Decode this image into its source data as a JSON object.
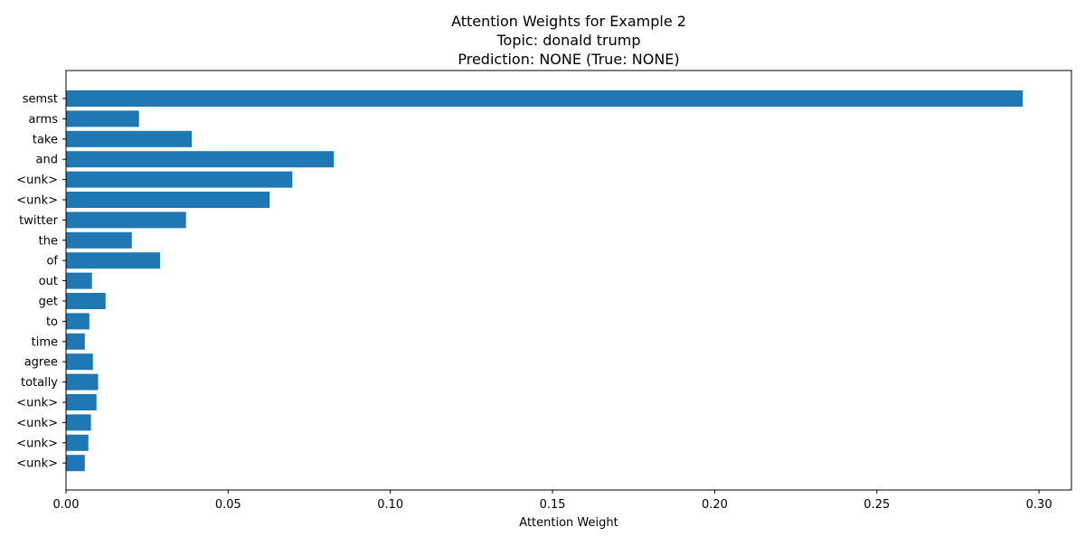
{
  "chart_data": {
    "type": "bar",
    "orientation": "horizontal",
    "title": [
      "Attention Weights for Example 2",
      "Topic: donald trump",
      "Prediction: NONE (True: NONE)"
    ],
    "xlabel": "Attention Weight",
    "ylabel": "",
    "xlim": [
      0,
      0.31
    ],
    "xticks": [
      0.0,
      0.05,
      0.1,
      0.15,
      0.2,
      0.25,
      0.3
    ],
    "xtick_labels": [
      "0.00",
      "0.05",
      "0.10",
      "0.15",
      "0.20",
      "0.25",
      "0.30"
    ],
    "grid": false,
    "bar_color": "#1f77b4",
    "categories": [
      "semst",
      "arms",
      "take",
      "and",
      "<unk>",
      "<unk>",
      "twitter",
      "the",
      "of",
      "out",
      "get",
      "to",
      "time",
      "agree",
      "totally",
      "<unk>",
      "<unk>",
      "<unk>",
      "<unk>"
    ],
    "values": [
      0.295,
      0.0225,
      0.0388,
      0.0826,
      0.0698,
      0.0628,
      0.037,
      0.0203,
      0.029,
      0.008,
      0.0122,
      0.0072,
      0.0058,
      0.0083,
      0.0099,
      0.0094,
      0.0077,
      0.0069,
      0.0058
    ]
  }
}
